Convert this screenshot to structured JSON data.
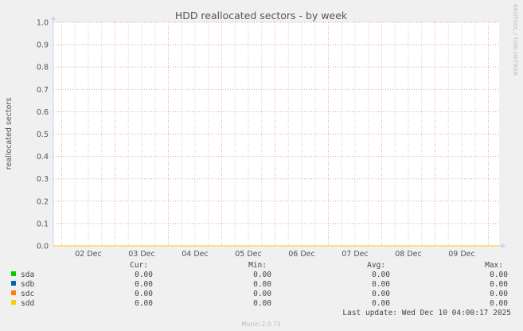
{
  "chart_data": {
    "type": "line",
    "title": "HDD reallocated sectors - by week",
    "ylabel": "reallocated sectors",
    "xlabel": "",
    "ylim": [
      0,
      1.0
    ],
    "yticks": [
      "0.0",
      "0.1",
      "0.2",
      "0.3",
      "0.4",
      "0.5",
      "0.6",
      "0.7",
      "0.8",
      "0.9",
      "1.0"
    ],
    "xticks": [
      "02 Dec",
      "03 Dec",
      "04 Dec",
      "05 Dec",
      "06 Dec",
      "07 Dec",
      "08 Dec",
      "09 Dec"
    ],
    "grid": true,
    "series": [
      {
        "name": "sda",
        "color": "#00cc00",
        "value": 0
      },
      {
        "name": "sdb",
        "color": "#0066b3",
        "value": 0
      },
      {
        "name": "sdc",
        "color": "#ff8000",
        "value": 0
      },
      {
        "name": "sdd",
        "color": "#ffcc00",
        "value": 0
      }
    ],
    "legend_headers": [
      "Cur:",
      "Min:",
      "Avg:",
      "Max:"
    ],
    "legend_values": [
      [
        "0.00",
        "0.00",
        "0.00",
        "0.00"
      ],
      [
        "0.00",
        "0.00",
        "0.00",
        "0.00"
      ],
      [
        "0.00",
        "0.00",
        "0.00",
        "0.00"
      ],
      [
        "0.00",
        "0.00",
        "0.00",
        "0.00"
      ]
    ],
    "legend_placement": "bottom"
  },
  "last_update": "Last update: Wed Dec 10 04:00:17 2025",
  "watermark": "RRDTOOL / TOBI OETIKER",
  "footer": "Munin 2.0.73"
}
